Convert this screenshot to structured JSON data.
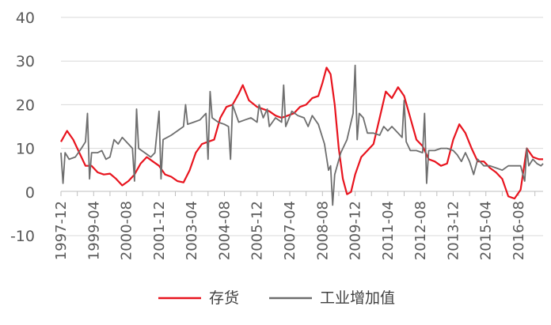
{
  "chart_data": {
    "type": "line",
    "title": "",
    "xlabel": "",
    "ylabel": "",
    "ylim": [
      -10,
      40
    ],
    "y_ticks": [
      -10,
      0,
      10,
      20,
      30,
      40
    ],
    "x_start": "1997-12",
    "x_end": "2017-08",
    "x_tick_labels": [
      "1997-12",
      "1999-04",
      "2000-08",
      "2001-12",
      "2003-04",
      "2004-08",
      "2005-12",
      "2007-04",
      "2008-08",
      "2009-12",
      "2011-04",
      "2012-08",
      "2013-12",
      "2015-04",
      "2016-08"
    ],
    "grid": "horizontal",
    "legend_position": "bottom",
    "series": [
      {
        "name": "存货",
        "color": "#e8141e",
        "points": [
          [
            "1997-12",
            11.5
          ],
          [
            "1998-03",
            14
          ],
          [
            "1998-06",
            12
          ],
          [
            "1998-09",
            9
          ],
          [
            "1998-12",
            6
          ],
          [
            "1999-03",
            6
          ],
          [
            "1999-06",
            4.5
          ],
          [
            "1999-09",
            4
          ],
          [
            "1999-12",
            4.2
          ],
          [
            "2000-03",
            3
          ],
          [
            "2000-06",
            1.5
          ],
          [
            "2000-09",
            2.5
          ],
          [
            "2000-12",
            4
          ],
          [
            "2001-03",
            6.5
          ],
          [
            "2001-06",
            8
          ],
          [
            "2001-09",
            7
          ],
          [
            "2001-12",
            6
          ],
          [
            "2002-03",
            4
          ],
          [
            "2002-06",
            3.5
          ],
          [
            "2002-09",
            2.5
          ],
          [
            "2002-12",
            2.2
          ],
          [
            "2003-03",
            5
          ],
          [
            "2003-06",
            9
          ],
          [
            "2003-09",
            11
          ],
          [
            "2003-12",
            11.5
          ],
          [
            "2004-03",
            12
          ],
          [
            "2004-06",
            17
          ],
          [
            "2004-09",
            19.5
          ],
          [
            "2004-12",
            20
          ],
          [
            "2005-03",
            22.5
          ],
          [
            "2005-05",
            24.5
          ],
          [
            "2005-08",
            21
          ],
          [
            "2005-12",
            19.5
          ],
          [
            "2006-03",
            19
          ],
          [
            "2006-06",
            18.5
          ],
          [
            "2006-09",
            17.5
          ],
          [
            "2006-12",
            17
          ],
          [
            "2007-03",
            17.5
          ],
          [
            "2007-06",
            18
          ],
          [
            "2007-09",
            19.5
          ],
          [
            "2007-12",
            20
          ],
          [
            "2008-03",
            21.5
          ],
          [
            "2008-06",
            22
          ],
          [
            "2008-08",
            25
          ],
          [
            "2008-10",
            28.5
          ],
          [
            "2008-12",
            27
          ],
          [
            "2009-02",
            20
          ],
          [
            "2009-04",
            10
          ],
          [
            "2009-06",
            3
          ],
          [
            "2009-08",
            -0.5
          ],
          [
            "2009-10",
            0
          ],
          [
            "2009-12",
            4
          ],
          [
            "2010-03",
            8
          ],
          [
            "2010-06",
            9.5
          ],
          [
            "2010-09",
            11
          ],
          [
            "2010-12",
            17
          ],
          [
            "2011-03",
            23
          ],
          [
            "2011-06",
            21.5
          ],
          [
            "2011-09",
            24
          ],
          [
            "2011-12",
            22
          ],
          [
            "2012-03",
            17
          ],
          [
            "2012-06",
            12
          ],
          [
            "2012-09",
            10.5
          ],
          [
            "2012-12",
            7.5
          ],
          [
            "2013-03",
            7
          ],
          [
            "2013-06",
            6
          ],
          [
            "2013-09",
            6.5
          ],
          [
            "2013-12",
            12
          ],
          [
            "2014-03",
            15.5
          ],
          [
            "2014-06",
            13.5
          ],
          [
            "2014-09",
            10
          ],
          [
            "2014-12",
            7
          ],
          [
            "2015-03",
            7
          ],
          [
            "2015-06",
            5.5
          ],
          [
            "2015-09",
            4.5
          ],
          [
            "2015-12",
            3
          ],
          [
            "2016-03",
            -1
          ],
          [
            "2016-06",
            -1.5
          ],
          [
            "2016-09",
            0.5
          ],
          [
            "2016-12",
            10
          ],
          [
            "2017-03",
            8
          ],
          [
            "2017-06",
            7.5
          ],
          [
            "2017-08",
            7.5
          ]
        ]
      },
      {
        "name": "工业增加值",
        "color": "#6e6e6e",
        "points": [
          [
            "1997-12",
            9
          ],
          [
            "1998-01",
            2
          ],
          [
            "1998-02",
            9
          ],
          [
            "1998-04",
            7.5
          ],
          [
            "1998-07",
            8
          ],
          [
            "1998-10",
            10
          ],
          [
            "1998-12",
            11.5
          ],
          [
            "1999-01",
            18
          ],
          [
            "1999-02",
            3
          ],
          [
            "1999-03",
            9
          ],
          [
            "1999-06",
            9
          ],
          [
            "1999-08",
            9.5
          ],
          [
            "1999-10",
            7.5
          ],
          [
            "1999-12",
            8
          ],
          [
            "2000-02",
            12
          ],
          [
            "2000-04",
            11
          ],
          [
            "2000-06",
            12.5
          ],
          [
            "2000-09",
            11
          ],
          [
            "2000-11",
            10
          ],
          [
            "2000-12",
            2.5
          ],
          [
            "2001-01",
            19
          ],
          [
            "2001-02",
            10
          ],
          [
            "2001-05",
            9
          ],
          [
            "2001-08",
            8
          ],
          [
            "2001-10",
            9
          ],
          [
            "2001-12",
            18.5
          ],
          [
            "2002-01",
            3
          ],
          [
            "2002-02",
            12
          ],
          [
            "2002-06",
            13
          ],
          [
            "2002-09",
            14
          ],
          [
            "2002-12",
            15
          ],
          [
            "2003-01",
            20
          ],
          [
            "2003-02",
            15.5
          ],
          [
            "2003-05",
            16
          ],
          [
            "2003-08",
            16.5
          ],
          [
            "2003-11",
            18
          ],
          [
            "2003-12",
            7.5
          ],
          [
            "2004-01",
            23
          ],
          [
            "2004-02",
            17
          ],
          [
            "2004-05",
            16
          ],
          [
            "2004-08",
            15.5
          ],
          [
            "2004-10",
            15
          ],
          [
            "2004-11",
            7.5
          ],
          [
            "2004-12",
            20
          ],
          [
            "2005-03",
            16
          ],
          [
            "2005-06",
            16.5
          ],
          [
            "2005-09",
            17
          ],
          [
            "2005-12",
            16
          ],
          [
            "2006-01",
            20
          ],
          [
            "2006-03",
            17
          ],
          [
            "2006-05",
            19
          ],
          [
            "2006-06",
            15
          ],
          [
            "2006-09",
            17
          ],
          [
            "2006-12",
            16
          ],
          [
            "2007-01",
            24.5
          ],
          [
            "2007-02",
            15
          ],
          [
            "2007-05",
            18.5
          ],
          [
            "2007-08",
            17.5
          ],
          [
            "2007-11",
            17
          ],
          [
            "2008-01",
            15
          ],
          [
            "2008-03",
            17.5
          ],
          [
            "2008-06",
            15.5
          ],
          [
            "2008-09",
            11
          ],
          [
            "2008-11",
            5
          ],
          [
            "2008-12",
            6
          ],
          [
            "2009-01",
            -3
          ],
          [
            "2009-02",
            4
          ],
          [
            "2009-05",
            9
          ],
          [
            "2009-08",
            12
          ],
          [
            "2009-11",
            18
          ],
          [
            "2009-12",
            29
          ],
          [
            "2010-01",
            12
          ],
          [
            "2010-02",
            18
          ],
          [
            "2010-04",
            17
          ],
          [
            "2010-06",
            13.5
          ],
          [
            "2010-09",
            13.5
          ],
          [
            "2010-12",
            13
          ],
          [
            "2011-02",
            15
          ],
          [
            "2011-04",
            14
          ],
          [
            "2011-06",
            15
          ],
          [
            "2011-09",
            13.5
          ],
          [
            "2011-11",
            12.5
          ],
          [
            "2011-12",
            21
          ],
          [
            "2012-01",
            11.5
          ],
          [
            "2012-03",
            9.5
          ],
          [
            "2012-06",
            9.5
          ],
          [
            "2012-09",
            9
          ],
          [
            "2012-10",
            18
          ],
          [
            "2012-11",
            2
          ],
          [
            "2012-12",
            9.5
          ],
          [
            "2013-03",
            9.5
          ],
          [
            "2013-06",
            10
          ],
          [
            "2013-09",
            10
          ],
          [
            "2013-12",
            9.5
          ],
          [
            "2014-02",
            8.5
          ],
          [
            "2014-04",
            7
          ],
          [
            "2014-06",
            9
          ],
          [
            "2014-08",
            7
          ],
          [
            "2014-10",
            4
          ],
          [
            "2014-12",
            7.5
          ],
          [
            "2015-03",
            6
          ],
          [
            "2015-06",
            6
          ],
          [
            "2015-09",
            5.5
          ],
          [
            "2015-12",
            5
          ],
          [
            "2016-03",
            6
          ],
          [
            "2016-06",
            6
          ],
          [
            "2016-09",
            6
          ],
          [
            "2016-11",
            2.5
          ],
          [
            "2016-12",
            10
          ],
          [
            "2017-01",
            6
          ],
          [
            "2017-03",
            7.5
          ],
          [
            "2017-05",
            6.5
          ],
          [
            "2017-07",
            6
          ],
          [
            "2017-08",
            6.5
          ]
        ]
      }
    ]
  }
}
